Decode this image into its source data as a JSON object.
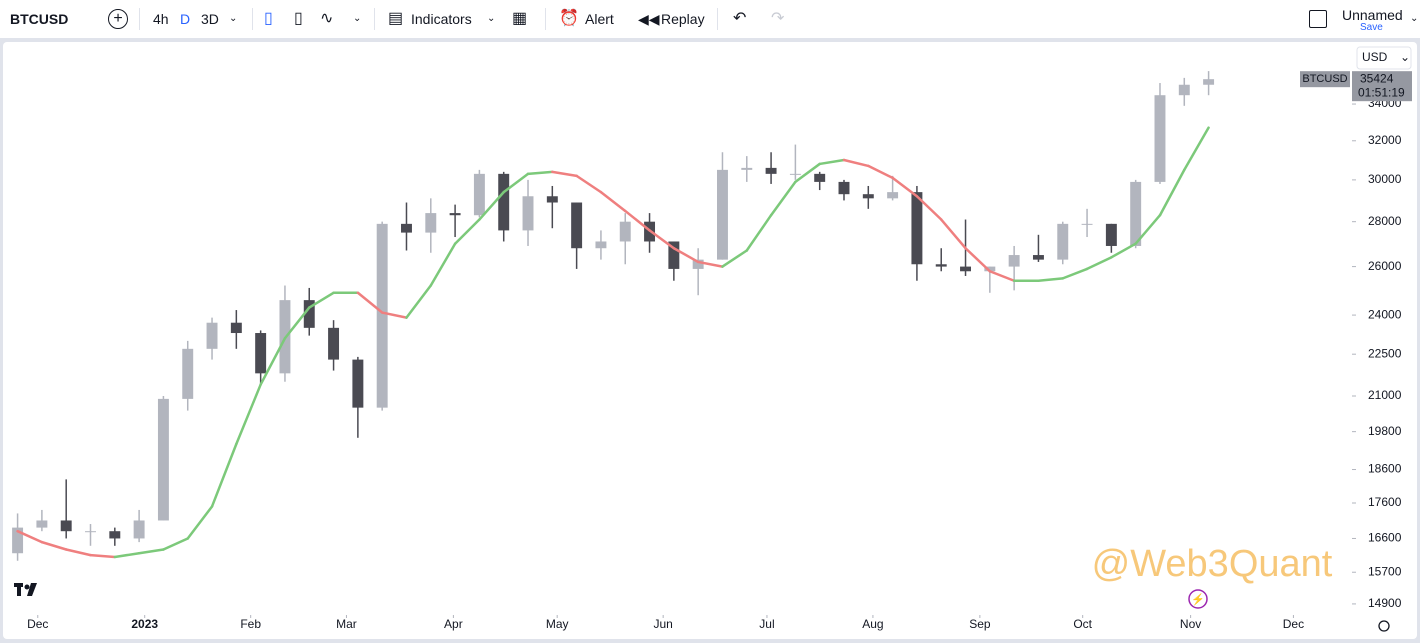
{
  "toolbar": {
    "symbol": "BTCUSD",
    "intervals": [
      "4h",
      "D",
      "3D"
    ],
    "indicators": "Indicators",
    "alert": "Alert",
    "replay": "Replay",
    "layout_name": "Unnamed",
    "save": "Save"
  },
  "chart_data": {
    "type": "candlestick",
    "currency": "USD",
    "log_scale": true,
    "ylim": [
      14630,
      37480
    ],
    "yticks": [
      14900,
      15700,
      16600,
      17600,
      18600,
      19800,
      21000,
      22500,
      24000,
      26000,
      28000,
      30000,
      32000,
      34000
    ],
    "xlim": [
      -0.6,
      54.9
    ],
    "xticks": [
      {
        "value": 0.83,
        "label": "Dec"
      },
      {
        "value": 5.23,
        "label": "2023"
      },
      {
        "value": 9.59,
        "label": "Feb"
      },
      {
        "value": 13.53,
        "label": "Mar"
      },
      {
        "value": 17.93,
        "label": "Apr"
      },
      {
        "value": 22.2,
        "label": "May"
      },
      {
        "value": 26.56,
        "label": "Jun"
      },
      {
        "value": 30.83,
        "label": "Jul"
      },
      {
        "value": 35.19,
        "label": "Aug"
      },
      {
        "value": 39.59,
        "label": "Sep"
      },
      {
        "value": 43.82,
        "label": "Oct"
      },
      {
        "value": 48.26,
        "label": "Nov"
      },
      {
        "value": 52.49,
        "label": "Dec"
      }
    ],
    "up_color": "#b2b5be",
    "down_color": "#4a4a52",
    "open": [
      16200,
      16900,
      17100,
      16800,
      16800,
      16600,
      17100,
      20900,
      22700,
      23700,
      23300,
      21800,
      24600,
      23500,
      22300,
      20600,
      27900,
      27500,
      28400,
      28300,
      30300,
      27600,
      29200,
      28900,
      26800,
      27100,
      28000,
      27100,
      25900,
      26300,
      30500,
      30600,
      30300,
      30300,
      29900,
      29300,
      29100,
      29400,
      26100,
      26000,
      25800,
      26000,
      26500,
      26300,
      27900,
      27900,
      26900,
      29900,
      34500,
      35100
    ],
    "high": [
      17300,
      17400,
      18300,
      17000,
      16900,
      17400,
      21000,
      23000,
      23900,
      24200,
      23400,
      25200,
      25100,
      23800,
      22400,
      28000,
      28900,
      29100,
      28800,
      30500,
      30400,
      30000,
      29700,
      28900,
      27600,
      28400,
      28400,
      27100,
      26800,
      31400,
      31200,
      31400,
      31800,
      30400,
      30000,
      29700,
      30200,
      29700,
      26800,
      28100,
      26000,
      26900,
      27400,
      28000,
      28600,
      27900,
      30000,
      35200,
      35500,
      35900
    ],
    "low": [
      16000,
      16800,
      16600,
      16400,
      16400,
      16500,
      17100,
      20500,
      22300,
      22700,
      21400,
      21500,
      23200,
      21900,
      19600,
      20500,
      26700,
      26600,
      27300,
      28200,
      27100,
      26900,
      27700,
      25900,
      26300,
      26100,
      26600,
      25400,
      24800,
      26300,
      29900,
      29800,
      30000,
      29500,
      29000,
      28600,
      29000,
      25400,
      25800,
      25600,
      24900,
      25000,
      26200,
      26100,
      27300,
      26600,
      26800,
      29800,
      33900,
      34500
    ],
    "close": [
      16900,
      17100,
      16800,
      16800,
      16600,
      17100,
      20900,
      22700,
      23700,
      23300,
      21800,
      24600,
      23500,
      22300,
      20600,
      27900,
      27500,
      28400,
      28300,
      30300,
      27600,
      29200,
      28900,
      26800,
      27100,
      28000,
      27100,
      25900,
      26300,
      30500,
      30600,
      30300,
      30300,
      29900,
      29300,
      29100,
      29400,
      26100,
      26000,
      25800,
      26000,
      26500,
      26300,
      27900,
      27900,
      26900,
      29900,
      34500,
      35100,
      35424
    ],
    "ma": {
      "rising_color": "#7cc97a",
      "falling_color": "#ef7f7f",
      "values": [
        16800,
        16500,
        16300,
        16150,
        16100,
        16200,
        16300,
        16600,
        17500,
        19400,
        21400,
        23100,
        24300,
        24900,
        24900,
        24100,
        23900,
        25200,
        27000,
        28100,
        29400,
        30300,
        30400,
        30200,
        29400,
        28500,
        27600,
        26800,
        26200,
        26000,
        26700,
        28300,
        29900,
        30800,
        31000,
        30700,
        30100,
        29200,
        28100,
        26800,
        25800,
        25400,
        25400,
        25500,
        25900,
        26400,
        27000,
        28300,
        30500,
        32700
      ]
    },
    "symbol_label": "BTCUSD",
    "last_price": 35424,
    "countdown": "01:51:19"
  },
  "watermark": "@Web3Quant"
}
